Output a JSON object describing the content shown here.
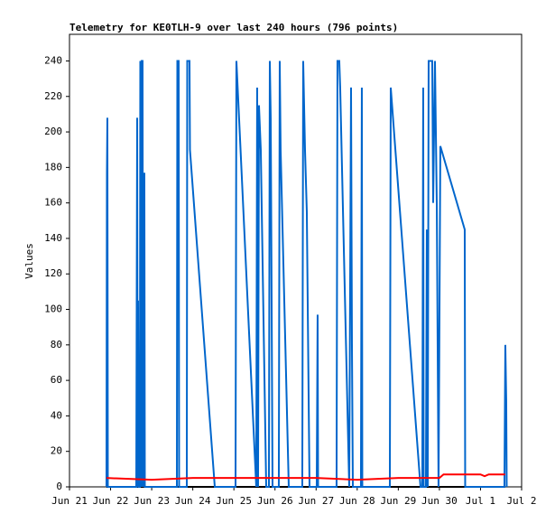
{
  "chart_data": {
    "type": "line",
    "title": "Telemetry for KE0TLH-9 over last 240 hours (796 points)",
    "y_label": "Values",
    "xlim": [
      0,
      11
    ],
    "xticks": [
      {
        "value": 0,
        "label": "Jun 21"
      },
      {
        "value": 1,
        "label": "Jun 22"
      },
      {
        "value": 2,
        "label": "Jun 23"
      },
      {
        "value": 3,
        "label": "Jun 24"
      },
      {
        "value": 4,
        "label": "Jun 25"
      },
      {
        "value": 5,
        "label": "Jun 26"
      },
      {
        "value": 6,
        "label": "Jun 27"
      },
      {
        "value": 7,
        "label": "Jun 28"
      },
      {
        "value": 8,
        "label": "Jun 29"
      },
      {
        "value": 9,
        "label": "Jun 30"
      },
      {
        "value": 10,
        "label": "Jul 1"
      },
      {
        "value": 11,
        "label": "Jul 2"
      }
    ],
    "ylim": [
      0,
      255
    ],
    "yticks": [
      0,
      20,
      40,
      60,
      80,
      100,
      120,
      140,
      160,
      180,
      200,
      220,
      240
    ],
    "grid": false,
    "series": [
      {
        "color": "#000000",
        "x": [
          0.9,
          10.6
        ],
        "values": [
          0,
          0
        ]
      },
      {
        "color": "#0066cc",
        "x": [
          0.9,
          0.911,
          0.922,
          0.933,
          1.625,
          1.647,
          1.657,
          1.668,
          1.679,
          1.712,
          1.723,
          1.745,
          1.756,
          1.778,
          1.789,
          1.822,
          1.833,
          2.613,
          2.624,
          2.656,
          2.667,
          2.854,
          2.865,
          2.92,
          2.931,
          3.535,
          4.04,
          4.061,
          4.544,
          4.566,
          4.588,
          4.61,
          4.654,
          4.786,
          4.852,
          4.874,
          4.896,
          4.94,
          5.093,
          5.115,
          5.137,
          5.335,
          5.664,
          5.686,
          5.73,
          5.774,
          5.84,
          6.015,
          6.037,
          6.048,
          6.498,
          6.52,
          6.564,
          6.586,
          6.806,
          6.85,
          6.872,
          6.894,
          7.091,
          7.113,
          7.124,
          7.794,
          7.816,
          8.54,
          8.584,
          8.606,
          8.617,
          8.672,
          8.694,
          8.716,
          8.738,
          8.782,
          8.826,
          8.848,
          8.892,
          8.936,
          8.979,
          9.023,
          9.616,
          9.627,
          10.582,
          10.604,
          10.626,
          10.637
        ],
        "values": [
          0,
          177,
          208,
          0,
          0,
          208,
          0,
          105,
          0,
          0,
          240,
          0,
          240,
          240,
          0,
          177,
          0,
          0,
          240,
          240,
          0,
          0,
          240,
          240,
          190,
          0,
          0,
          240,
          0,
          225,
          0,
          215,
          190,
          0,
          0,
          240,
          208,
          0,
          0,
          240,
          190,
          0,
          0,
          240,
          190,
          155,
          0,
          0,
          97,
          0,
          0,
          240,
          240,
          225,
          0,
          225,
          80,
          0,
          0,
          225,
          0,
          0,
          225,
          0,
          0,
          225,
          0,
          0,
          145,
          0,
          240,
          240,
          240,
          160,
          240,
          160,
          0,
          192,
          145,
          0,
          0,
          80,
          48,
          0
        ]
      },
      {
        "color": "#ff0000",
        "x": [
          0.9,
          2,
          3,
          4,
          5,
          6,
          7,
          8,
          9,
          9.1,
          10,
          10.1,
          10.2,
          10.6
        ],
        "values": [
          5,
          4,
          5,
          5,
          5,
          5,
          4,
          5,
          5,
          7,
          7,
          6,
          7,
          7
        ]
      }
    ]
  }
}
